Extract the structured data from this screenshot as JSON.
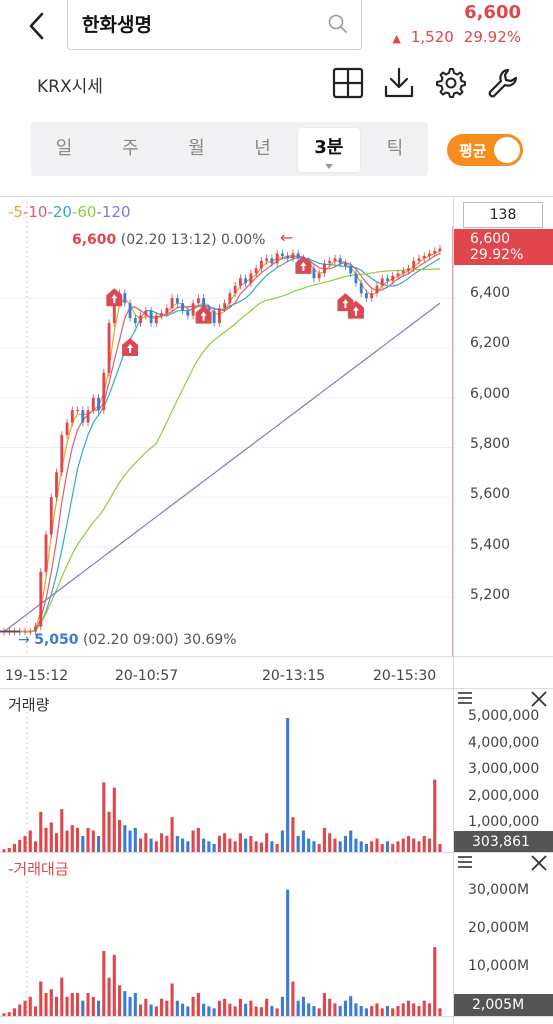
{
  "header": {
    "back_icon": "chevron-left-icon",
    "search_text": "한화생명",
    "search_icon": "search-icon",
    "price": "6,600",
    "change_arrow": "▲",
    "change_value": "1,520",
    "change_pct": "29.92%",
    "accent_color": "#e0464b"
  },
  "toolbar": {
    "market_label": "KRX시세",
    "icons": [
      "grid-plus-icon",
      "download-icon",
      "gear-icon",
      "wrench-icon"
    ]
  },
  "tabs": {
    "items": [
      "일",
      "주",
      "월",
      "년",
      "3분",
      "틱"
    ],
    "active": "3분",
    "toggle_label": "평균",
    "toggle_on": true
  },
  "price_chart": {
    "ma_legend": [
      {
        "label": "5",
        "color": "#f0a030"
      },
      {
        "label": "10",
        "color": "#e35b6b"
      },
      {
        "label": "20",
        "color": "#36a9c9"
      },
      {
        "label": "60",
        "color": "#8fce3b"
      },
      {
        "label": "120",
        "color": "#8c72d6"
      }
    ],
    "interval_box": "138",
    "current_price": "6,600",
    "current_pct": "29.92%",
    "high_price": "6,600",
    "high_detail": "(02.20 13:12) 0.00%",
    "high_arrow": "←",
    "low_arrow": "→",
    "low_price": "5,050",
    "low_detail": "(02.20 09:00) 30.69%",
    "y_ticks": [
      "6,400",
      "6,200",
      "6,000",
      "5,800",
      "5,600",
      "5,400",
      "5,200"
    ],
    "x_ticks": [
      "19-15:12",
      "20-10:57",
      "20-13:15",
      "20-15:30"
    ]
  },
  "volume_panel": {
    "title": "거래량",
    "y_ticks": [
      "5,000,000",
      "4,000,000",
      "3,000,000",
      "2,000,000",
      "1,000,000"
    ],
    "current_value": "303,861",
    "menu_icon": "menu-icon",
    "close_icon": "close-icon"
  },
  "amount_panel": {
    "title": "-거래대금",
    "y_ticks": [
      "30,000M",
      "20,000M",
      "10,000M"
    ],
    "current_value": "2,005M",
    "menu_icon": "menu-icon",
    "close_icon": "close-icon"
  },
  "chart_data": {
    "type": "line",
    "xlabels": [
      "19-15:12",
      "20-10:57",
      "20-13:15",
      "20-15:30"
    ],
    "ylim": [
      5050,
      6650
    ],
    "price": [
      5060,
      5060,
      5060,
      5060,
      5060,
      5060,
      5080,
      5300,
      5450,
      5600,
      5700,
      5850,
      5900,
      5950,
      5950,
      5900,
      5950,
      6000,
      5950,
      6100,
      6300,
      6400,
      6420,
      6380,
      6320,
      6300,
      6330,
      6350,
      6300,
      6330,
      6340,
      6360,
      6400,
      6380,
      6350,
      6330,
      6380,
      6400,
      6360,
      6350,
      6300,
      6360,
      6380,
      6420,
      6450,
      6480,
      6460,
      6500,
      6520,
      6550,
      6560,
      6540,
      6580,
      6570,
      6560,
      6580,
      6560,
      6550,
      6520,
      6480,
      6500,
      6540,
      6550,
      6560,
      6540,
      6530,
      6500,
      6460,
      6420,
      6400,
      6420,
      6450,
      6480,
      6470,
      6490,
      6500,
      6510,
      6520,
      6550,
      6560,
      6570,
      6580,
      6590,
      6600
    ],
    "highlights": [
      {
        "label": "6,600",
        "time": "02.20 13:12"
      },
      {
        "label": "5,050",
        "time": "02.20 09:00"
      }
    ],
    "volume_ylim": [
      0,
      5000000
    ],
    "volume": [
      100000,
      150000,
      300000,
      450000,
      600000,
      800000,
      400000,
      1500000,
      900000,
      1100000,
      700000,
      1600000,
      800000,
      1000000,
      900000,
      600000,
      900000,
      800000,
      600000,
      2600000,
      1500000,
      2400000,
      1200000,
      1000000,
      800000,
      900000,
      500000,
      700000,
      500000,
      400000,
      700000,
      600000,
      1300000,
      600000,
      500000,
      400000,
      800000,
      900000,
      500000,
      400000,
      300000,
      600000,
      700000,
      500000,
      400000,
      700000,
      500000,
      600000,
      400000,
      350000,
      700000,
      400000,
      300000,
      800000,
      5000000,
      1300000,
      600000,
      800000,
      500000,
      400000,
      300000,
      900000,
      700000,
      500000,
      400000,
      600000,
      800000,
      500000,
      400000,
      300000,
      400000,
      500000,
      300000,
      400000,
      300000,
      400000,
      500000,
      600000,
      500000,
      400000,
      600000,
      500000,
      2700000,
      300000
    ],
    "amount_ylim": [
      0,
      35000000000
    ],
    "amount": [
      700000000,
      1000000000,
      2000000000,
      3000000000,
      4000000000,
      5000000000,
      2500000000,
      9000000000,
      6000000000,
      7000000000,
      5000000000,
      10000000000,
      5000000000,
      6000000000,
      6000000000,
      4000000000,
      6000000000,
      5000000000,
      4000000000,
      17000000000,
      10000000000,
      16000000000,
      8000000000,
      6500000000,
      5000000000,
      6000000000,
      3000000000,
      4500000000,
      3000000000,
      2500000000,
      4500000000,
      4000000000,
      8500000000,
      4000000000,
      3200000000,
      2500000000,
      5000000000,
      6000000000,
      3200000000,
      2500000000,
      2000000000,
      4000000000,
      4500000000,
      3200000000,
      2500000000,
      4500000000,
      3200000000,
      4000000000,
      2500000000,
      2300000000,
      4500000000,
      2600000000,
      2000000000,
      5000000000,
      33000000000,
      9000000000,
      4000000000,
      5000000000,
      3300000000,
      2600000000,
      2000000000,
      6000000000,
      4500000000,
      3300000000,
      2600000000,
      4000000000,
      5200000000,
      3300000000,
      2600000000,
      2000000000,
      2600000000,
      3300000000,
      2000000000,
      2600000000,
      2000000000,
      2600000000,
      3300000000,
      4000000000,
      3300000000,
      2600000000,
      4000000000,
      3300000000,
      18000000000,
      2005000000
    ]
  }
}
